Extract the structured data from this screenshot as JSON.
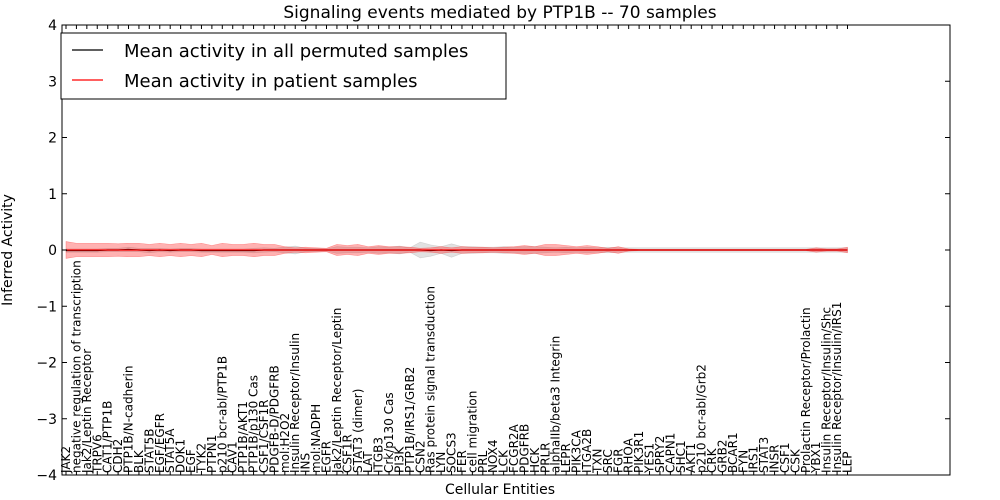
{
  "chart_data": {
    "type": "line",
    "title": "Signaling events mediated by PTP1B -- 70 samples",
    "xlabel": "Cellular Entities",
    "ylabel": "Inferred Activity",
    "ylim": [
      -4,
      4
    ],
    "yticks": [
      -4,
      -3,
      -2,
      -1,
      0,
      1,
      2,
      3,
      4
    ],
    "legend": {
      "placement": "top-left"
    },
    "categories": [
      "JAK2",
      "negative regulation of transcription",
      "Jak2/Leptin Receptor",
      "TRPV6",
      "CAT1/PTP1B",
      "CDH2",
      "PTP1B/N-cadherin",
      "BLK",
      "STAT5B",
      "EGF/EGFR",
      "STAT5A",
      "DOK1",
      "EGF",
      "TYK2",
      "PTPN1",
      "p210 bcr-abl/PTP1B",
      "CAV1",
      "PTP1B/AKT1",
      "PTP1B/p130 Cas",
      "CSF1/CSF1R",
      "PDGFB-D/PDGFRB",
      "mol:H2O2",
      "Insulin Receptor/Insulin",
      "INS",
      "mol:NADPH",
      "EGFR",
      "Jak2/Leptin Receptor/Leptin",
      "CSF1R",
      "STAT3 (dimer)",
      "LAT",
      "ITGB3",
      "Crk/p130 Cas",
      "PI3K",
      "PTP1B/IRS1/GRB2",
      "CSN2",
      "Ras protein signal transduction",
      "LYN",
      "SOCS3",
      "FER",
      "cell migration",
      "PRL",
      "NOX4",
      "LCK",
      "FCGR2A",
      "PDGFRB",
      "HCK",
      "PRLR",
      "alphaIIb/beta3 Integrin",
      "LEPR",
      "PIK3CA",
      "ITGA2B",
      "TXN",
      "SRC",
      "FGR",
      "RHOA",
      "PIK3R1",
      "YES1",
      "SPRY2",
      "CAPN1",
      "SHC1",
      "AKT1",
      "p210 bcr-abl/Grb2",
      "CRK",
      "GRB2",
      "BCAR1",
      "FYN",
      "IRS1",
      "STAT3",
      "INSR",
      "CSF1",
      "CSK",
      "Prolactin Receptor/Prolactin",
      "YBX1",
      "Insulin Receptor/Insulin/Shc",
      "Insulin Receptor/Insulin/IRS1",
      "LEP"
    ],
    "series": [
      {
        "name": "Mean activity in all permuted samples",
        "color": "#000000",
        "values": [
          -0.01,
          -0.01,
          -0.01,
          -0.01,
          0.0,
          0.0,
          0.01,
          0.0,
          -0.01,
          0.0,
          -0.01,
          0.0,
          0.0,
          -0.01,
          -0.01,
          -0.01,
          -0.01,
          -0.01,
          -0.01,
          0.0,
          0.0,
          0.0,
          0.0,
          0.0,
          0.0,
          0.0,
          0.0,
          0.0,
          0.0,
          0.0,
          0.0,
          0.0,
          0.0,
          0.0,
          0.0,
          -0.01,
          0.0,
          -0.01,
          0.0,
          0.0,
          0.0,
          0.0,
          0.0,
          0.0,
          0.0,
          0.0,
          0.0,
          0.0,
          0.0,
          0.0,
          0.0,
          0.0,
          0.0,
          0.0,
          0.0,
          0.0,
          0.0,
          0.0,
          0.0,
          0.0,
          0.0,
          0.0,
          0.0,
          0.0,
          0.0,
          0.0,
          0.0,
          0.0,
          0.0,
          0.0,
          0.0,
          0.0,
          0.0,
          0.0,
          0.0,
          0.0
        ],
        "band": [
          0.03,
          0.03,
          0.03,
          0.03,
          0.03,
          0.03,
          0.04,
          0.03,
          0.04,
          0.03,
          0.03,
          0.03,
          0.03,
          0.03,
          0.03,
          0.03,
          0.03,
          0.03,
          0.04,
          0.04,
          0.03,
          0.05,
          0.07,
          0.03,
          0.03,
          0.02,
          0.06,
          0.05,
          0.05,
          0.04,
          0.06,
          0.05,
          0.07,
          0.04,
          0.14,
          0.1,
          0.06,
          0.12,
          0.06,
          0.06,
          0.05,
          0.05,
          0.06,
          0.05,
          0.06,
          0.06,
          0.05,
          0.04,
          0.05,
          0.04,
          0.05,
          0.04,
          0.05,
          0.04,
          0.04,
          0.04,
          0.04,
          0.04,
          0.04,
          0.04,
          0.04,
          0.04,
          0.04,
          0.04,
          0.04,
          0.04,
          0.04,
          0.04,
          0.04,
          0.04,
          0.04,
          0.04,
          0.04,
          0.04,
          0.04,
          0.04
        ]
      },
      {
        "name": "Mean activity in patient samples",
        "color": "#ff0000",
        "values": [
          0.0,
          0.0,
          0.0,
          0.0,
          0.0,
          0.0,
          0.0,
          0.0,
          0.0,
          0.0,
          0.0,
          0.0,
          0.0,
          0.0,
          0.0,
          0.0,
          0.0,
          0.0,
          0.0,
          0.0,
          0.0,
          0.0,
          0.0,
          0.0,
          0.0,
          0.0,
          0.0,
          0.0,
          0.0,
          0.0,
          0.0,
          0.0,
          0.0,
          0.0,
          0.0,
          0.0,
          0.0,
          0.0,
          0.0,
          0.0,
          0.0,
          0.0,
          0.0,
          0.0,
          0.0,
          0.0,
          0.0,
          0.0,
          0.0,
          0.0,
          0.0,
          0.0,
          0.0,
          0.0,
          0.0,
          0.0,
          0.0,
          0.0,
          0.0,
          0.0,
          0.0,
          0.0,
          0.0,
          0.0,
          0.0,
          0.0,
          0.0,
          0.0,
          0.0,
          0.0,
          0.0,
          0.0,
          0.0,
          0.0,
          0.0,
          0.0
        ],
        "band": [
          0.15,
          0.12,
          0.12,
          0.12,
          0.12,
          0.11,
          0.12,
          0.12,
          0.1,
          0.12,
          0.1,
          0.12,
          0.1,
          0.12,
          0.08,
          0.12,
          0.1,
          0.1,
          0.12,
          0.1,
          0.1,
          0.06,
          0.04,
          0.05,
          0.04,
          0.03,
          0.1,
          0.08,
          0.1,
          0.06,
          0.08,
          0.06,
          0.06,
          0.05,
          0.03,
          0.04,
          0.06,
          0.04,
          0.06,
          0.05,
          0.05,
          0.04,
          0.05,
          0.06,
          0.08,
          0.06,
          0.1,
          0.1,
          0.08,
          0.06,
          0.08,
          0.06,
          0.03,
          0.06,
          0.02,
          0.01,
          0.01,
          0.01,
          0.01,
          0.01,
          0.01,
          0.01,
          0.01,
          0.01,
          0.01,
          0.01,
          0.01,
          0.01,
          0.01,
          0.01,
          0.01,
          0.01,
          0.04,
          0.02,
          0.02,
          0.05
        ]
      }
    ]
  }
}
